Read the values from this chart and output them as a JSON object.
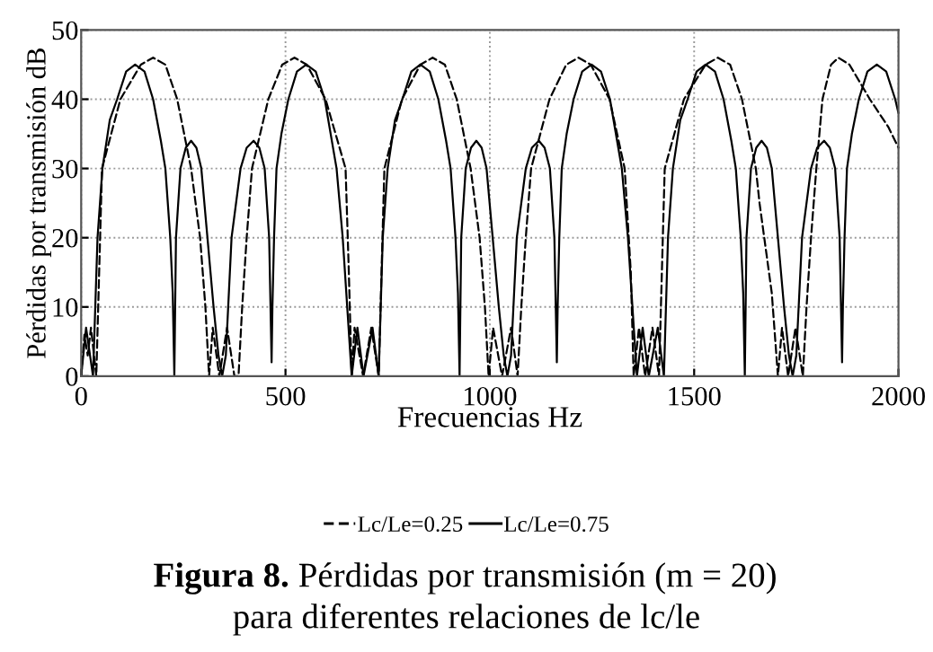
{
  "chart_data": {
    "type": "line",
    "xlabel": "Frecuencias Hz",
    "ylabel": "Pérdidas por transmisión dB",
    "xlim": [
      0,
      2000
    ],
    "ylim": [
      0,
      50
    ],
    "xticks": [
      0,
      500,
      1000,
      1500,
      2000
    ],
    "yticks": [
      0,
      10,
      20,
      30,
      40,
      50
    ],
    "grid": true,
    "legend": "bottom",
    "marker": "none",
    "annotations": [
      "Figura 8.",
      "Pérdidas por transmisión (m = 20)",
      "para diferentes relaciones de lc/le"
    ],
    "series": [
      {
        "name": "Lc/Le=0.25",
        "color": "#000000",
        "line_style": "dashed",
        "x": [
          0,
          8,
          16,
          24,
          37,
          51,
          96,
          146,
          176,
          206,
          235,
          269,
          291,
          304,
          313,
          322,
          338,
          357,
          375,
          385,
          394,
          405,
          418,
          458,
          492,
          522,
          552,
          598,
          647,
          655,
          662,
          669,
          690,
          710,
          728,
          742,
          785,
          830,
          860,
          890,
          919,
          953,
          975,
          988,
          997,
          1008,
          1030,
          1052,
          1068,
          1077,
          1088,
          1101,
          1146,
          1187,
          1217,
          1247,
          1293,
          1330,
          1345,
          1352,
          1365,
          1380,
          1398,
          1414,
          1428,
          1475,
          1528,
          1558,
          1588,
          1617,
          1651,
          1660,
          1690,
          1705,
          1715,
          1730,
          1748,
          1766,
          1775,
          1786,
          1799,
          1814,
          1835,
          1853,
          1880,
          1930,
          1975,
          2000
        ],
        "values": [
          0,
          6,
          3,
          7,
          0,
          30,
          40,
          45,
          46,
          45,
          40,
          30,
          20,
          10,
          0,
          7,
          0,
          7,
          0,
          0,
          10,
          20,
          30,
          40,
          45,
          46,
          45,
          40,
          30,
          15,
          0,
          7,
          0,
          7,
          0,
          30,
          40,
          45,
          46,
          45,
          40,
          30,
          20,
          10,
          0,
          7,
          0,
          7,
          0,
          10,
          20,
          30,
          40,
          45,
          46,
          45,
          40,
          30,
          15,
          0,
          7,
          0,
          7,
          0,
          30,
          40,
          45,
          46,
          45,
          40,
          30,
          25,
          12,
          0,
          7,
          0,
          7,
          0,
          10,
          20,
          30,
          40,
          45,
          46,
          45,
          40,
          36,
          33
        ]
      },
      {
        "name": "Lc/Le=0.75",
        "color": "#000000",
        "line_style": "solid",
        "x": [
          0,
          12,
          29,
          40,
          52,
          70,
          88,
          110,
          132,
          155,
          176,
          195,
          206,
          218,
          224,
          228,
          232,
          243,
          256,
          269,
          282,
          294,
          309,
          324,
          336,
          345,
          354,
          368,
          390,
          405,
          422,
          436,
          449,
          460,
          464,
          466,
          468,
          472,
          478,
          490,
          507,
          528,
          551,
          574,
          596,
          625,
          640,
          651,
          662,
          676,
          691,
          713,
          728,
          738,
          750,
          768,
          786,
          808,
          830,
          853,
          874,
          893,
          904,
          916,
          922,
          926,
          930,
          941,
          954,
          967,
          980,
          992,
          1007,
          1022,
          1034,
          1043,
          1052,
          1066,
          1088,
          1103,
          1120,
          1134,
          1147,
          1158,
          1162,
          1164,
          1166,
          1170,
          1176,
          1188,
          1205,
          1226,
          1249,
          1272,
          1294,
          1323,
          1338,
          1349,
          1360,
          1374,
          1389,
          1411,
          1426,
          1436,
          1448,
          1466,
          1484,
          1506,
          1528,
          1551,
          1572,
          1591,
          1602,
          1614,
          1620,
          1624,
          1628,
          1639,
          1652,
          1665,
          1678,
          1690,
          1705,
          1720,
          1732,
          1741,
          1750,
          1764,
          1786,
          1801,
          1818,
          1832,
          1845,
          1856,
          1860,
          1862,
          1864,
          1868,
          1874,
          1886,
          1903,
          1924,
          1947,
          1970,
          1992,
          2000
        ],
        "values": [
          0,
          7,
          0,
          20,
          30,
          37,
          40,
          44,
          45,
          44,
          40,
          34,
          30,
          20,
          12,
          0,
          20,
          30,
          33,
          34,
          33,
          30,
          20,
          10,
          3,
          0,
          3,
          20,
          30,
          33,
          34,
          33,
          30,
          20,
          8,
          2,
          10,
          20,
          30,
          35,
          40,
          44,
          45,
          44,
          40,
          30,
          20,
          10,
          0,
          7,
          0,
          7,
          0,
          20,
          30,
          37,
          40,
          44,
          45,
          44,
          40,
          34,
          30,
          20,
          12,
          0,
          20,
          30,
          33,
          34,
          33,
          30,
          20,
          10,
          3,
          0,
          3,
          20,
          30,
          33,
          34,
          33,
          30,
          20,
          8,
          2,
          10,
          20,
          30,
          35,
          40,
          44,
          45,
          44,
          40,
          30,
          20,
          10,
          0,
          7,
          0,
          7,
          0,
          20,
          30,
          37,
          40,
          44,
          45,
          44,
          40,
          34,
          30,
          20,
          12,
          0,
          20,
          30,
          33,
          34,
          33,
          30,
          20,
          10,
          3,
          0,
          3,
          20,
          30,
          33,
          34,
          33,
          30,
          20,
          8,
          2,
          10,
          20,
          30,
          35,
          40,
          44,
          45,
          44,
          40,
          38
        ]
      }
    ]
  }
}
